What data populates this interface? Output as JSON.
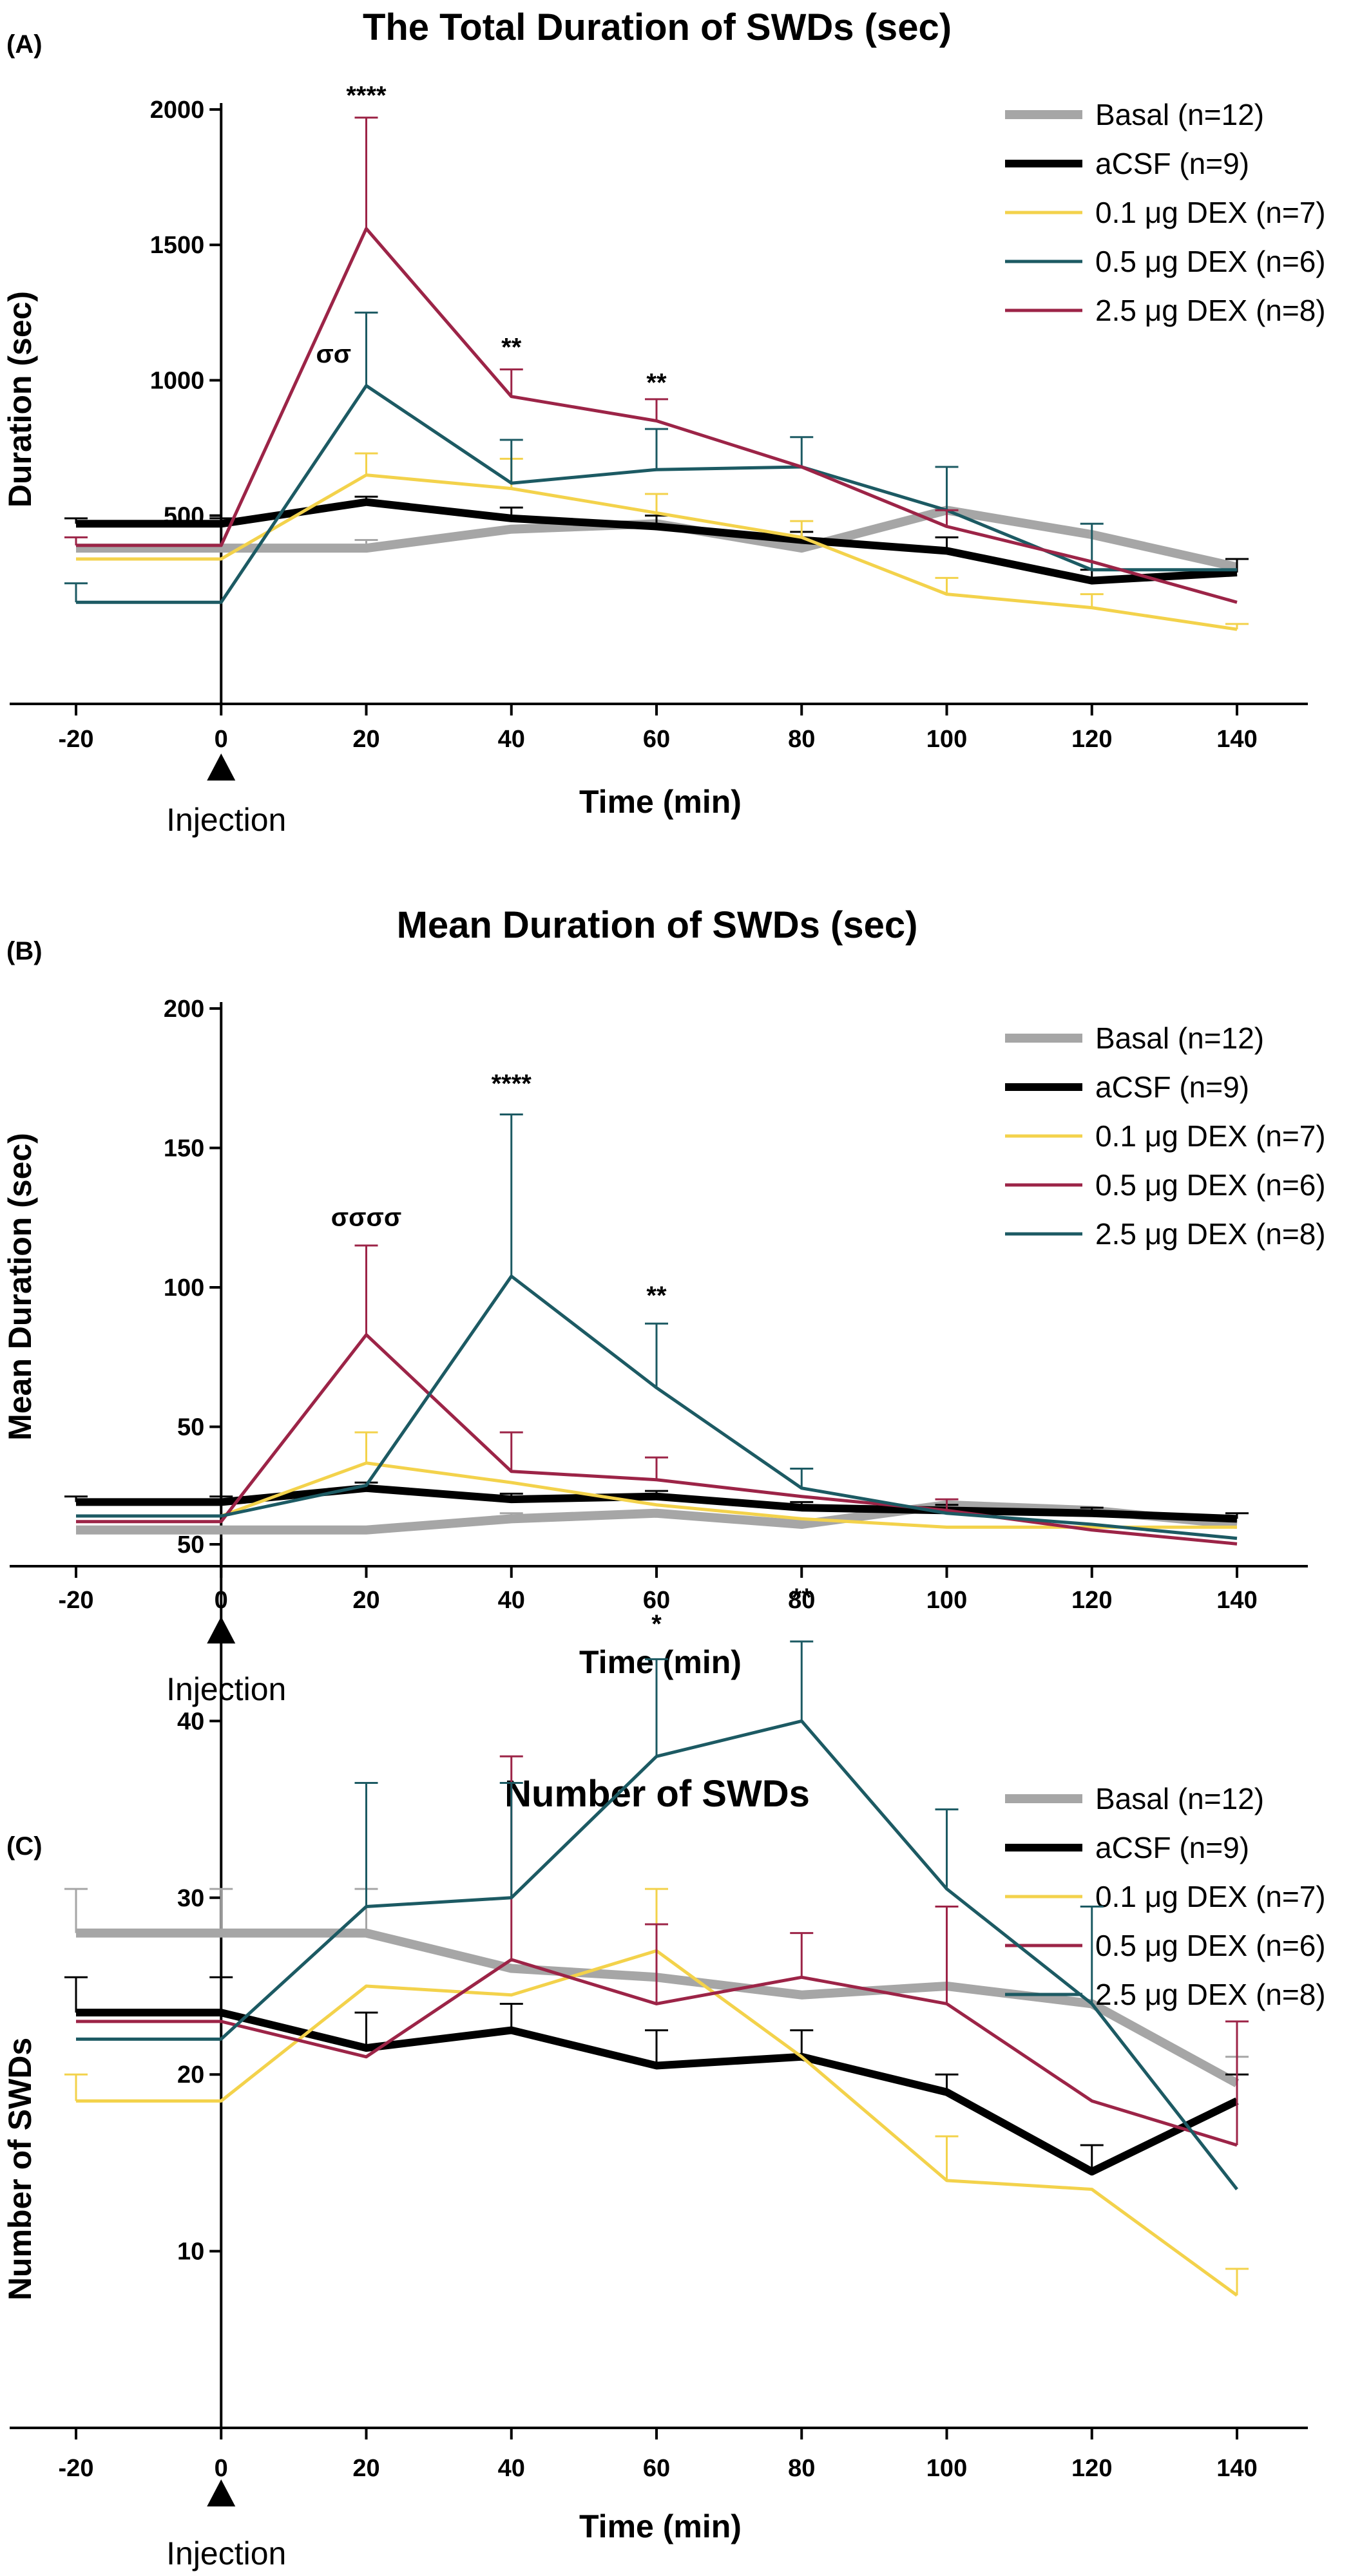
{
  "chart_data": [
    {
      "panel": "(A)",
      "type": "line",
      "title": "The Total Duration of SWDs (sec)",
      "xlabel": "Time (min)",
      "ylabel": "Duration (sec)",
      "x": [
        -20,
        0,
        20,
        40,
        60,
        80,
        100,
        120,
        140
      ],
      "x_ticks": [
        "-20",
        "0",
        "20",
        "40",
        "60",
        "80",
        "100",
        "120",
        "140"
      ],
      "xlim": [
        -20,
        140
      ],
      "ylim": [
        -200,
        2000
      ],
      "y_ticks": [
        "500",
        "1000",
        "1500",
        "2000"
      ],
      "y_tick_values": [
        500,
        1000,
        1500,
        2000
      ],
      "injection_label": "Injection",
      "injection_x": 0,
      "legend": "top-right",
      "series": [
        {
          "name": "Basal (n=12)",
          "color": "#a6a6a6",
          "width": 14,
          "values": [
            380,
            380,
            380,
            450,
            470,
            380,
            520,
            430,
            310
          ],
          "errors": [
            0,
            0,
            30,
            0,
            0,
            0,
            0,
            0,
            30
          ]
        },
        {
          "name": "aCSF (n=9)",
          "color": "#000000",
          "width": 12,
          "values": [
            470,
            470,
            550,
            490,
            460,
            410,
            370,
            260,
            290
          ],
          "errors": [
            20,
            20,
            20,
            40,
            40,
            30,
            50,
            40,
            50
          ]
        },
        {
          "name": "0.1 μg DEX  (n=7)",
          "color": "#f3d24b",
          "width": 5,
          "values": [
            340,
            340,
            650,
            600,
            510,
            420,
            210,
            160,
            80
          ],
          "errors": [
            0,
            0,
            80,
            110,
            70,
            60,
            60,
            50,
            20
          ]
        },
        {
          "name": "0.5 μg DEX  (n=6)",
          "color": "#1c5a63",
          "width": 5,
          "values": [
            180,
            180,
            980,
            620,
            670,
            680,
            520,
            300,
            300
          ],
          "errors": [
            70,
            0,
            270,
            160,
            150,
            110,
            160,
            170,
            0
          ]
        },
        {
          "name": "2.5 μg DEX  (n=8)",
          "color": "#9c2447",
          "width": 5,
          "values": [
            390,
            390,
            1560,
            940,
            850,
            680,
            460,
            330,
            180
          ],
          "errors": [
            30,
            0,
            410,
            100,
            80,
            0,
            60,
            0,
            0
          ]
        }
      ],
      "annotations": [
        {
          "text": "****",
          "x": 20,
          "y": 2020
        },
        {
          "text": "σσ",
          "x": 15.5,
          "y": 1065
        },
        {
          "text": "**",
          "x": 40,
          "y": 1090
        },
        {
          "text": "**",
          "x": 60,
          "y": 960
        }
      ]
    },
    {
      "panel": "(B)",
      "type": "line",
      "title": "Mean Duration of SWDs (sec)",
      "xlabel": "Time (min)",
      "ylabel": "Mean Duration (sec)",
      "x": [
        -20,
        0,
        20,
        40,
        60,
        80,
        100,
        120,
        140
      ],
      "x_ticks": [
        "-20",
        "0",
        "20",
        "40",
        "60",
        "80",
        "100",
        "120",
        "140"
      ],
      "xlim": [
        -20,
        140
      ],
      "ylim": [
        0,
        200
      ],
      "y_ticks": [
        "50",
        "100",
        "150",
        "200"
      ],
      "y_tick_values": [
        50,
        100,
        150,
        200
      ],
      "injection_label": "Injection",
      "injection_x": 0,
      "legend": "right",
      "series": [
        {
          "name": "Basal (n=12)",
          "color": "#a6a6a6",
          "width": 14,
          "values": [
            13,
            13,
            13,
            17,
            19,
            15,
            22,
            20,
            15
          ],
          "errors": [
            0,
            0,
            0,
            2,
            0,
            0,
            0,
            0,
            0
          ]
        },
        {
          "name": "aCSF (n=9)",
          "color": "#000000",
          "width": 12,
          "values": [
            23,
            23,
            28,
            24,
            25,
            21,
            20,
            19,
            17
          ],
          "errors": [
            2,
            2,
            2,
            2,
            2,
            2,
            2,
            2,
            2
          ]
        },
        {
          "name": "0.1 μg DEX (n=7)",
          "color": "#f3d24b",
          "width": 5,
          "values": [
            18,
            18,
            37,
            30,
            22,
            17,
            14,
            14,
            14
          ],
          "errors": [
            0,
            0,
            11,
            0,
            0,
            0,
            0,
            0,
            0
          ]
        },
        {
          "name": "0.5 μg DEX (n=6)",
          "color": "#9c2447",
          "width": 5,
          "values": [
            16,
            16,
            83,
            34,
            31,
            25,
            20,
            13,
            8
          ],
          "errors": [
            0,
            0,
            32,
            14,
            8,
            0,
            4,
            0,
            0
          ]
        },
        {
          "name": "2.5 μg DEX (n=8)",
          "color": "#1c5a63",
          "width": 5,
          "values": [
            18,
            18,
            29,
            104,
            64,
            28,
            19,
            15,
            10
          ],
          "errors": [
            0,
            0,
            0,
            58,
            23,
            7,
            0,
            0,
            0
          ]
        }
      ],
      "annotations": [
        {
          "text": "σσσσ",
          "x": 20,
          "y": 122
        },
        {
          "text": "****",
          "x": 40,
          "y": 170
        },
        {
          "text": "**",
          "x": 60,
          "y": 94
        }
      ]
    },
    {
      "panel": "(C)",
      "type": "line",
      "title": "Number of SWDs",
      "xlabel": "Time (min)",
      "ylabel": "Number of SWDs",
      "x": [
        -20,
        0,
        20,
        40,
        60,
        80,
        100,
        120,
        140
      ],
      "x_ticks": [
        "-20",
        "0",
        "20",
        "40",
        "60",
        "80",
        "100",
        "120",
        "140"
      ],
      "xlim": [
        -20,
        140
      ],
      "ylim": [
        0,
        50
      ],
      "y_ticks": [
        "10",
        "20",
        "30",
        "40",
        "50"
      ],
      "y_tick_values": [
        10,
        20,
        30,
        40,
        50
      ],
      "injection_label": "Injection",
      "injection_x": 0,
      "legend": "top-right",
      "series": [
        {
          "name": "Basal (n=12)",
          "color": "#a6a6a6",
          "width": 14,
          "values": [
            28,
            28,
            28,
            26,
            25.5,
            24.5,
            25,
            24,
            19.5
          ],
          "errors": [
            2.5,
            2.5,
            2.5,
            0,
            0,
            0,
            0,
            0,
            1.5
          ]
        },
        {
          "name": "aCSF (n=9)",
          "color": "#000000",
          "width": 12,
          "values": [
            23.5,
            23.5,
            21.5,
            22.5,
            20.5,
            21,
            19,
            14.5,
            18.5
          ],
          "errors": [
            2,
            2,
            2,
            1.5,
            2,
            1.5,
            1,
            1.5,
            1.5
          ]
        },
        {
          "name": "0.1 μg DEX (n=7)",
          "color": "#f3d24b",
          "width": 5,
          "values": [
            18.5,
            18.5,
            25,
            24.5,
            27,
            21,
            14,
            13.5,
            7.5
          ],
          "errors": [
            1.5,
            0,
            0,
            0,
            3.5,
            0,
            2.5,
            0,
            1.5
          ]
        },
        {
          "name": "0.5 μg DEX (n=6)",
          "color": "#9c2447",
          "width": 5,
          "values": [
            23,
            23,
            21,
            26.5,
            24,
            25.5,
            24,
            18.5,
            16
          ],
          "errors": [
            0,
            0,
            0,
            11.5,
            4.5,
            2.5,
            5.5,
            0,
            7
          ]
        },
        {
          "name": "2.5 μg DEX (n=8)",
          "color": "#1c5a63",
          "width": 5,
          "values": [
            22,
            22,
            29.5,
            30,
            38,
            40,
            30.5,
            24,
            13.5
          ],
          "errors": [
            0,
            0,
            7,
            6.5,
            5.5,
            4.5,
            4.5,
            5.5,
            0
          ]
        }
      ],
      "annotations": [
        {
          "text": "*",
          "x": 60,
          "y": 45
        },
        {
          "text": "**",
          "x": 80,
          "y": 46.5
        }
      ]
    }
  ]
}
